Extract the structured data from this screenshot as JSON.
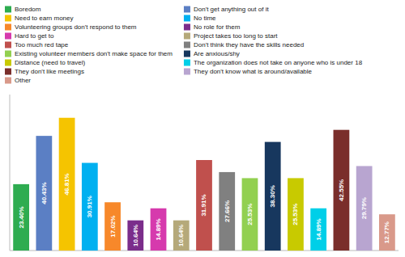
{
  "chart_data": {
    "type": "bar",
    "categories": [
      "Boredom",
      "Don't get anything out of it",
      "Need to earn money",
      "No time",
      "Volunteering groups don't respond to them",
      "No role for them",
      "Hard to get to",
      "Project takes too long to start",
      "Too much red tape",
      "Don't think they have the skills needed",
      "Existing volunteer members don't make space for them",
      "Are anxious/shy",
      "Distance (need to travel)",
      "The organization does not take on anyone who is under 18",
      "They don't like meetings",
      "They don't know what is around/available",
      "Other"
    ],
    "values": [
      23.4,
      40.43,
      46.81,
      30.91,
      17.02,
      10.64,
      14.89,
      10.64,
      31.91,
      27.66,
      25.53,
      38.3,
      25.53,
      14.89,
      42.55,
      29.79,
      12.77
    ],
    "value_labels": [
      "23.40%",
      "40.43%",
      "46.81%",
      "30.91%",
      "17.02%",
      "10.64%",
      "14.89%",
      "10.64%",
      "31.91%",
      "27.66%",
      "25.53%",
      "38.30%",
      "25.53%",
      "14.89%",
      "42.55%",
      "29.79%",
      "12.77%"
    ],
    "colors": [
      "#2eac50",
      "#5b7fc4",
      "#f5c400",
      "#00b0f0",
      "#f7882a",
      "#7b2d8b",
      "#d63aad",
      "#b5a97a",
      "#c0504d",
      "#808080",
      "#92d050",
      "#17375e",
      "#c8ca00",
      "#00cfe8",
      "#7a2e2b",
      "#b8a5d0",
      "#d9998a"
    ],
    "ylim": [
      0,
      55
    ],
    "legend": "top",
    "data_labels": true,
    "tick_labels": false
  }
}
